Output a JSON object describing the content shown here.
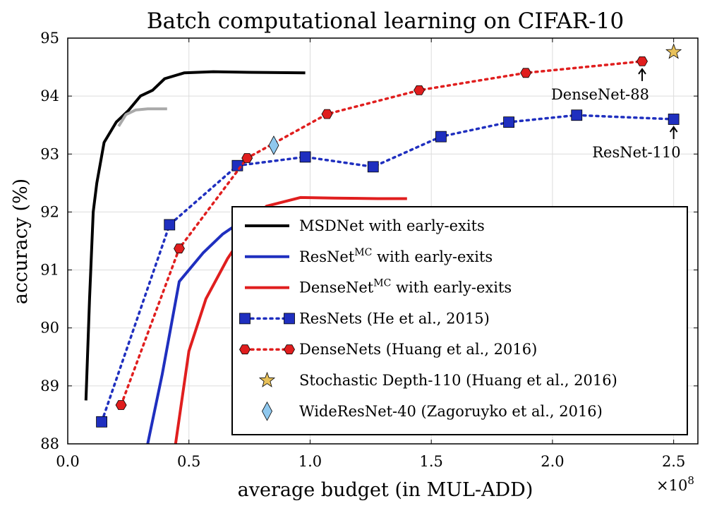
{
  "chart_data": {
    "type": "line",
    "title": "Batch computational learning on CIFAR-10",
    "xlabel": "average budget (in MUL-ADD)",
    "ylabel": "accuracy (%)",
    "x_multiplier": "×10",
    "x_multiplier_exp": "8",
    "xlim": [
      0.0,
      2.6
    ],
    "ylim": [
      88,
      95
    ],
    "xticks": [
      0.0,
      0.5,
      1.0,
      1.5,
      2.0,
      2.5
    ],
    "xtick_labels": [
      "0.0",
      "0.5",
      "1.0",
      "1.5",
      "2.0",
      "2.5"
    ],
    "yticks": [
      88,
      89,
      90,
      91,
      92,
      93,
      94,
      95
    ],
    "ytick_labels": [
      "88",
      "89",
      "90",
      "91",
      "92",
      "93",
      "94",
      "95"
    ],
    "grid": true,
    "legend_position": "lower-right",
    "series": [
      {
        "name": "MSDNet with early-exits",
        "style": "solid",
        "color": "#000000",
        "x": [
          0.075,
          0.09,
          0.105,
          0.12,
          0.15,
          0.2,
          0.25,
          0.3,
          0.35,
          0.4,
          0.48,
          0.6,
          0.75,
          0.98
        ],
        "y": [
          88.75,
          90.5,
          92.0,
          92.5,
          93.2,
          93.55,
          93.75,
          94.0,
          94.1,
          94.3,
          94.4,
          94.42,
          94.41,
          94.4
        ]
      },
      {
        "name": "MSDNet (gray segment)",
        "style": "solid",
        "color": "#a9a9a9",
        "legend": false,
        "x": [
          0.21,
          0.24,
          0.28,
          0.33,
          0.41
        ],
        "y": [
          93.48,
          93.68,
          93.76,
          93.78,
          93.78
        ]
      },
      {
        "name": "ResNet",
        "name_sup": "MC",
        "name_suffix": " with early-exits",
        "style": "solid",
        "color": "#1f2fbf",
        "x": [
          0.33,
          0.39,
          0.46,
          0.56,
          0.64,
          0.71
        ],
        "y": [
          88.0,
          89.2,
          90.8,
          91.3,
          91.62,
          91.82
        ]
      },
      {
        "name": "DenseNet",
        "name_sup": "MC",
        "name_suffix": " with early-exits",
        "style": "solid",
        "color": "#e01e1e",
        "x": [
          0.445,
          0.5,
          0.57,
          0.66,
          0.74,
          0.82,
          0.96,
          1.1,
          1.28,
          1.4
        ],
        "y": [
          88.0,
          89.6,
          90.5,
          91.2,
          91.7,
          92.1,
          92.25,
          92.24,
          92.23,
          92.23
        ]
      },
      {
        "name": "ResNets (He et al., 2015)",
        "style": "dotted",
        "color": "#1f2fbf",
        "marker": "square",
        "x": [
          0.14,
          0.42,
          0.7,
          0.98,
          1.26,
          1.54,
          1.82,
          2.1,
          2.5
        ],
        "y": [
          88.38,
          91.78,
          92.8,
          92.95,
          92.78,
          93.3,
          93.55,
          93.67,
          93.6
        ]
      },
      {
        "name": "DenseNets (Huang et al., 2016)",
        "style": "dotted",
        "color": "#e01e1e",
        "marker": "hexagon",
        "x": [
          0.22,
          0.46,
          0.74,
          1.07,
          1.45,
          1.89,
          2.37
        ],
        "y": [
          88.67,
          91.37,
          92.93,
          93.69,
          94.1,
          94.4,
          94.6
        ]
      },
      {
        "name": "Stochastic Depth-110 (Huang et al., 2016)",
        "style": "none",
        "color": "#e8c15a",
        "marker": "star",
        "x": [
          2.5
        ],
        "y": [
          94.76
        ]
      },
      {
        "name": "WideResNet-40 (Zagoruyko et al., 2016)",
        "style": "none",
        "color": "#8fc8ee",
        "marker": "diamond",
        "x": [
          0.85
        ],
        "y": [
          93.15
        ]
      }
    ],
    "annotations": [
      {
        "text": "DenseNet-88",
        "x": 2.37,
        "y": 94.6
      },
      {
        "text": "ResNet-110",
        "x": 2.5,
        "y": 93.6
      }
    ]
  }
}
